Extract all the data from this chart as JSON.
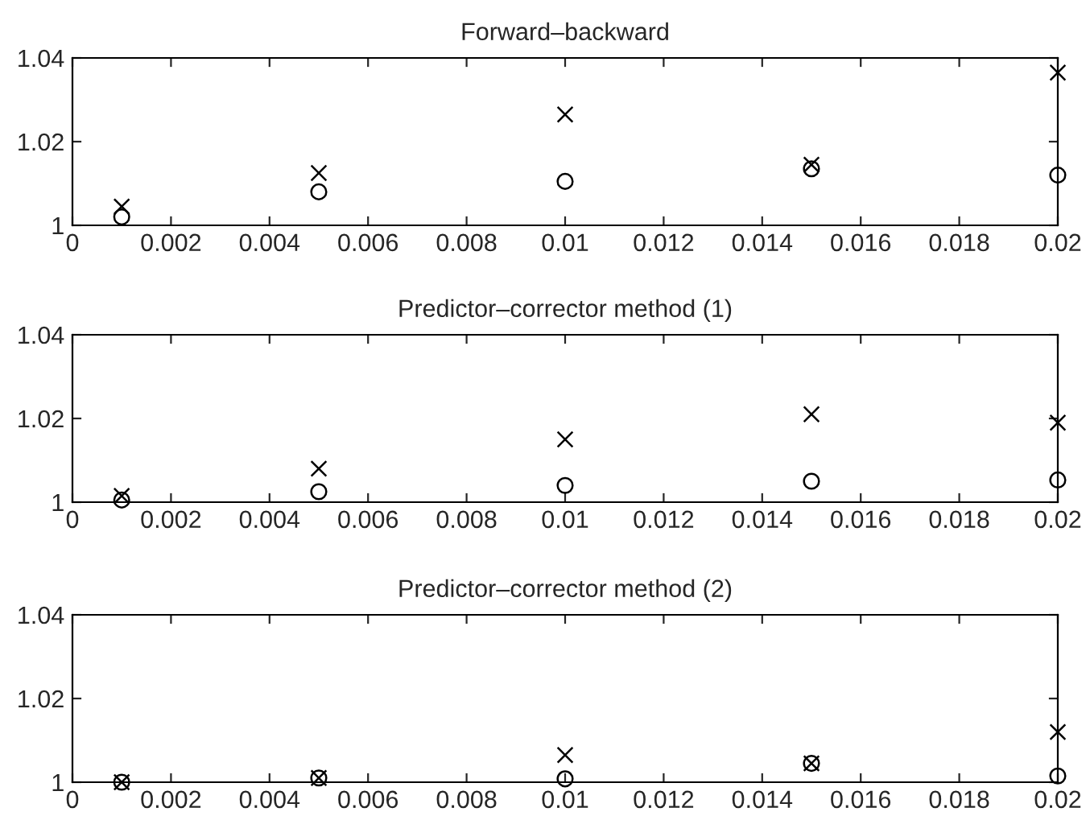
{
  "chart_data": [
    {
      "type": "scatter",
      "title": "Forward–backward",
      "x": [
        0.001,
        0.005,
        0.01,
        0.015,
        0.02
      ],
      "xlim": [
        0,
        0.02
      ],
      "xticks": [
        0,
        0.002,
        0.004,
        0.006,
        0.008,
        0.01,
        0.012,
        0.014,
        0.016,
        0.018,
        0.02
      ],
      "ylim": [
        1,
        1.04
      ],
      "yticks": [
        1,
        1.02,
        1.04
      ],
      "grid": false,
      "legend": false,
      "series": [
        {
          "color": "#000000",
          "marker": "cross",
          "values": [
            1.0045,
            1.0125,
            1.0265,
            1.0145,
            1.0365
          ]
        },
        {
          "color": "#000000",
          "marker": "circle",
          "values": [
            1.002,
            1.008,
            1.0105,
            1.0135,
            1.012
          ]
        }
      ]
    },
    {
      "type": "scatter",
      "title": "Predictor–corrector method (1)",
      "x": [
        0.001,
        0.005,
        0.01,
        0.015,
        0.02
      ],
      "xlim": [
        0,
        0.02
      ],
      "xticks": [
        0,
        0.002,
        0.004,
        0.006,
        0.008,
        0.01,
        0.012,
        0.014,
        0.016,
        0.018,
        0.02
      ],
      "ylim": [
        1,
        1.04
      ],
      "yticks": [
        1,
        1.02,
        1.04
      ],
      "grid": false,
      "legend": false,
      "series": [
        {
          "color": "#000000",
          "marker": "cross",
          "values": [
            1.0015,
            1.008,
            1.015,
            1.021,
            1.019
          ]
        },
        {
          "color": "#000000",
          "marker": "circle",
          "values": [
            1.0005,
            1.0025,
            1.004,
            1.005,
            1.0053
          ]
        }
      ]
    },
    {
      "type": "scatter",
      "title": "Predictor–corrector method (2)",
      "x": [
        0.001,
        0.005,
        0.01,
        0.015,
        0.02
      ],
      "xlim": [
        0,
        0.02
      ],
      "xticks": [
        0,
        0.002,
        0.004,
        0.006,
        0.008,
        0.01,
        0.012,
        0.014,
        0.016,
        0.018,
        0.02
      ],
      "ylim": [
        1,
        1.04
      ],
      "yticks": [
        1,
        1.02,
        1.04
      ],
      "grid": false,
      "legend": false,
      "series": [
        {
          "color": "#000000",
          "marker": "cross",
          "values": [
            1.0,
            1.001,
            1.0065,
            1.0045,
            1.012
          ]
        },
        {
          "color": "#000000",
          "marker": "circle",
          "values": [
            1.0,
            1.001,
            1.0008,
            1.0045,
            1.0015
          ]
        }
      ]
    }
  ]
}
